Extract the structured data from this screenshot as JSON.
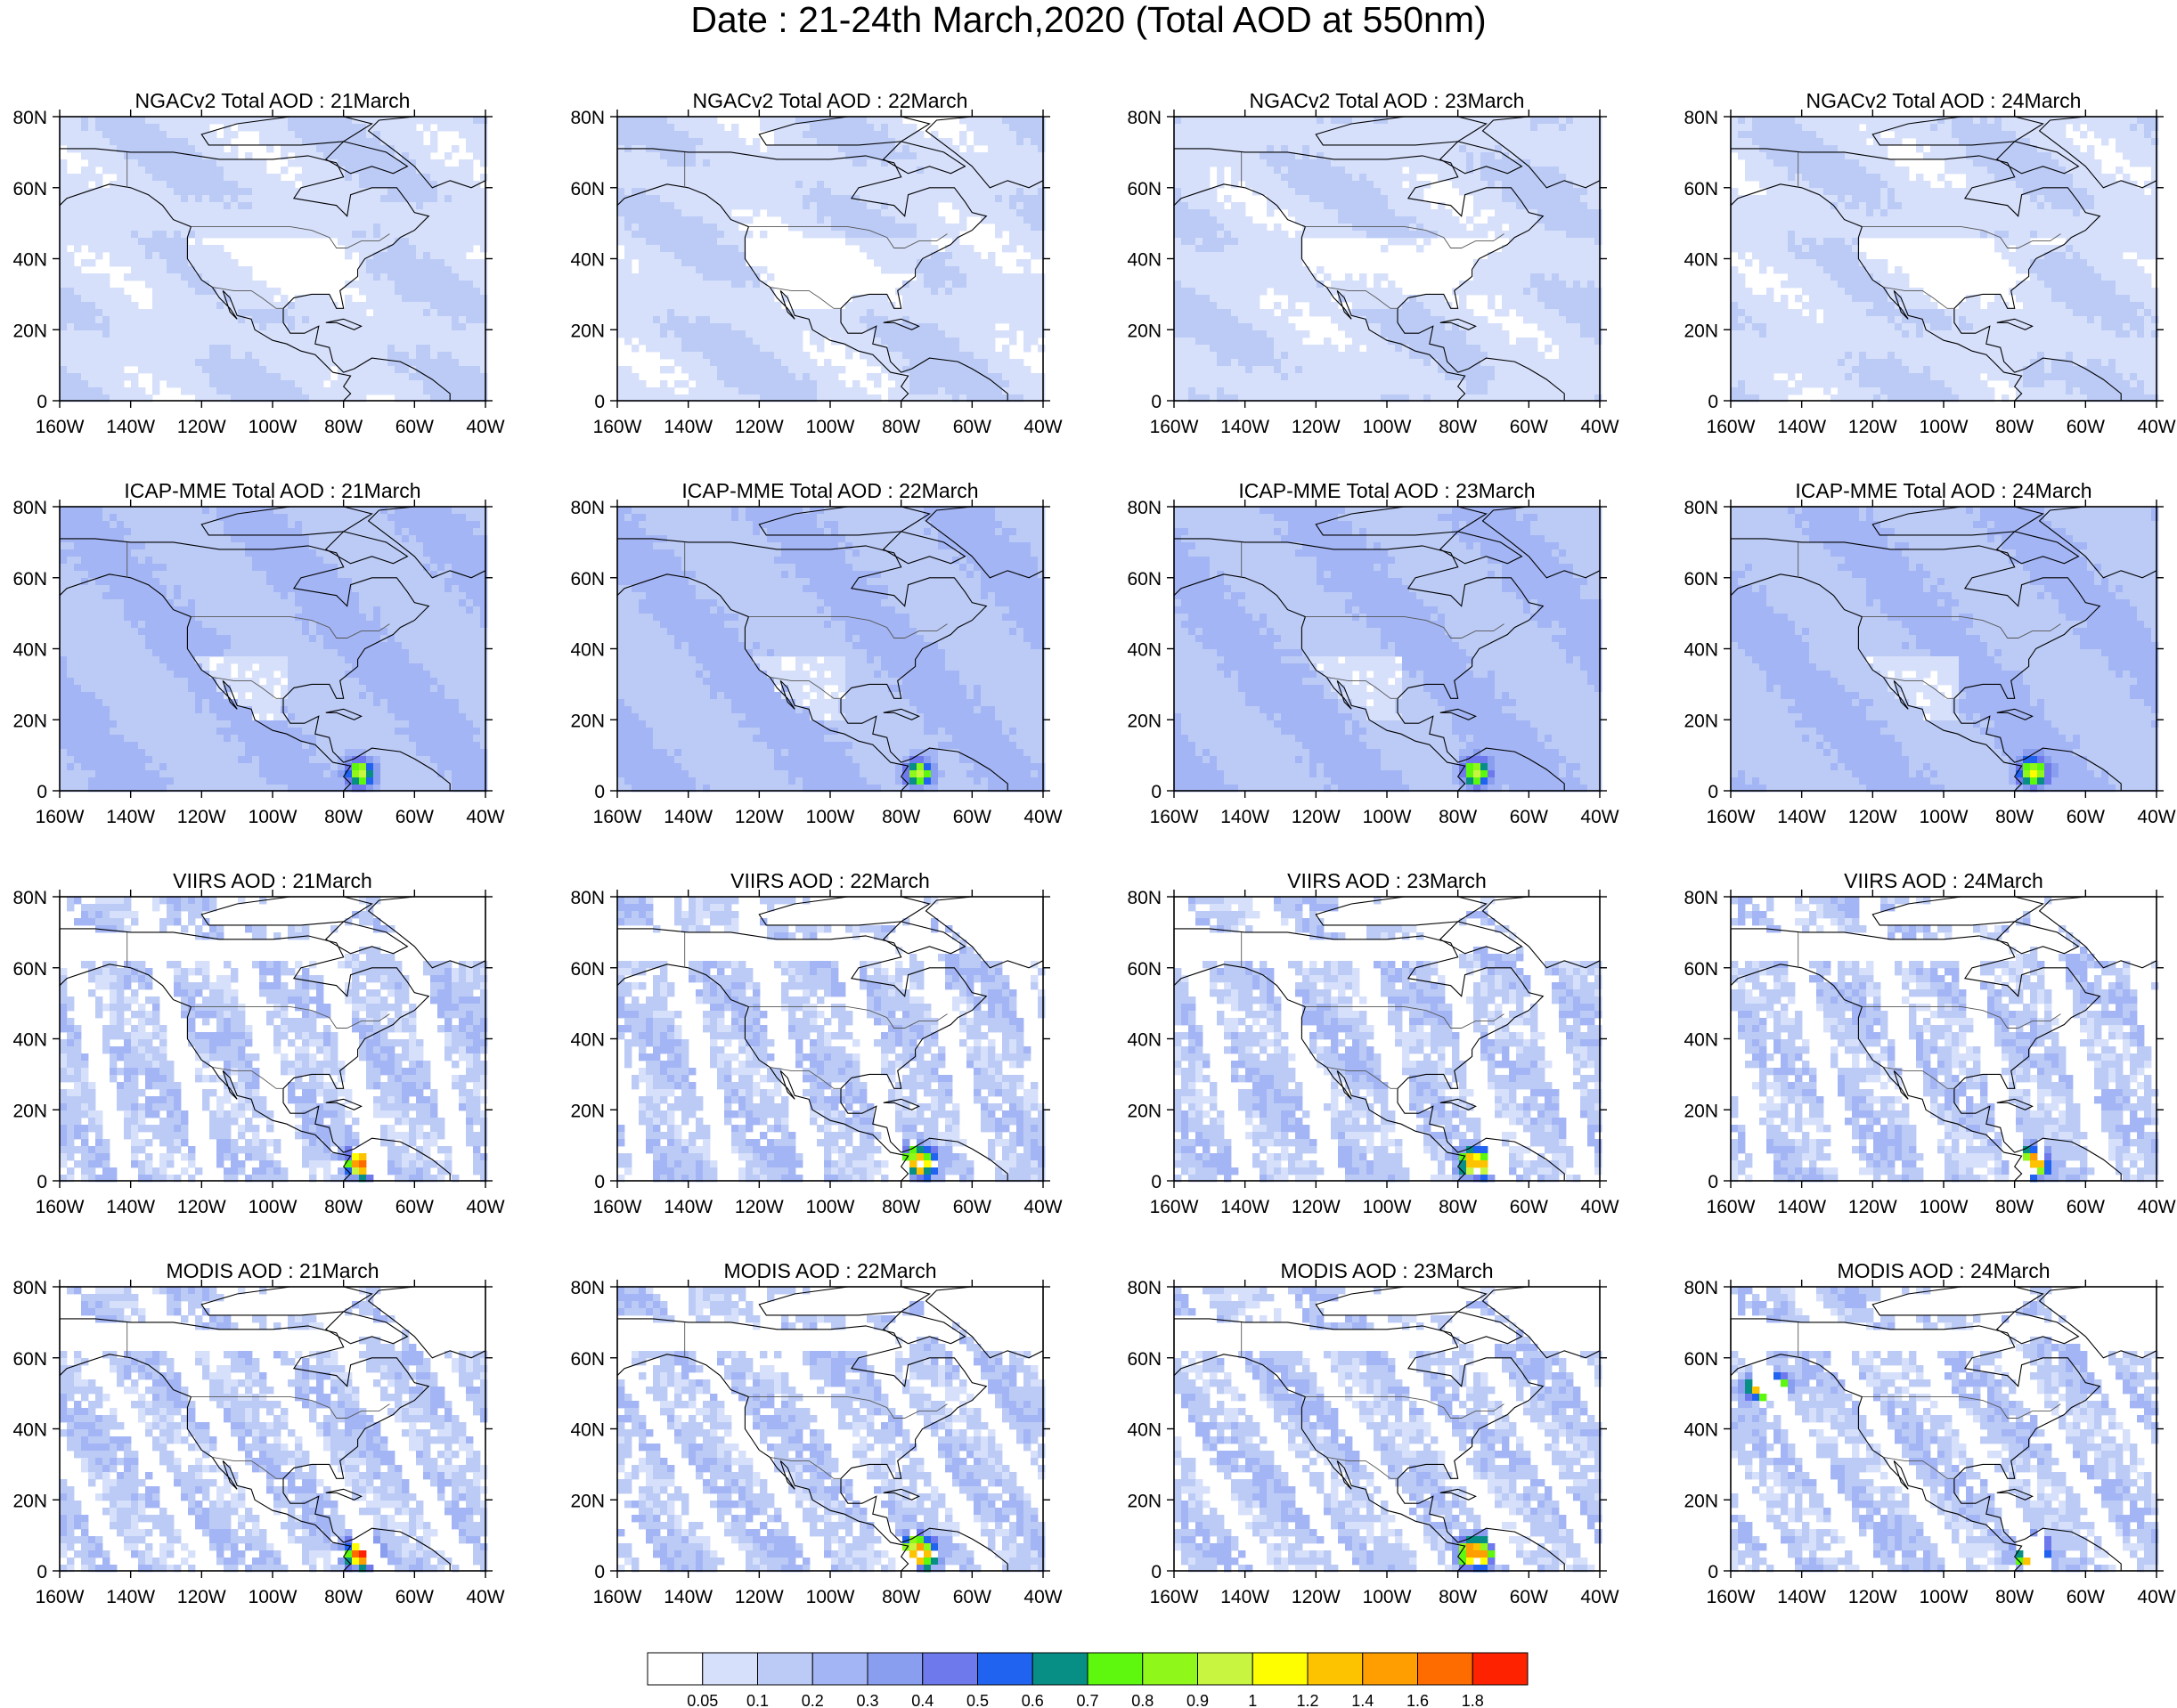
{
  "title": "Date : 21-24th March,2020 (Total AOD at 550nm)",
  "chart_data": {
    "type": "heatmap",
    "layout": "4 rows x 4 columns of map panels",
    "map_extent": {
      "lon": [
        -160,
        -40
      ],
      "lat": [
        0,
        80
      ]
    },
    "x_ticks": [
      "160W",
      "140W",
      "120W",
      "100W",
      "80W",
      "60W",
      "40W"
    ],
    "y_ticks": [
      "0",
      "20N",
      "40N",
      "60N",
      "80N"
    ],
    "products": [
      {
        "key": "ngac",
        "name": "NGACv2 Total AOD",
        "description": "smooth model field, mostly 0.05-0.2",
        "dust_peak": 0.1
      },
      {
        "key": "icap",
        "name": "ICAP-MME Total AOD",
        "description": "smooth model field, 0.1-0.3, hotspot in northern South America",
        "dust_peak": 0.8
      },
      {
        "key": "viirs",
        "name": "VIIRS AOD",
        "description": "satellite retrieval with orbit swath gaps, hotspot near 75W 5N",
        "dust_peak": 1.2
      },
      {
        "key": "modis",
        "name": "MODIS AOD",
        "description": "satellite retrieval with diagonal swath gaps, hotspot near 75W 5N",
        "dust_peak": 1.4
      }
    ],
    "panels": [
      {
        "product": "ngac",
        "title": "NGACv2 Total AOD : 21March"
      },
      {
        "product": "ngac",
        "title": "NGACv2 Total AOD : 22March"
      },
      {
        "product": "ngac",
        "title": "NGACv2 Total AOD : 23March"
      },
      {
        "product": "ngac",
        "title": "NGACv2 Total AOD : 24March"
      },
      {
        "product": "icap",
        "title": "ICAP-MME Total AOD : 21March"
      },
      {
        "product": "icap",
        "title": "ICAP-MME Total AOD : 22March"
      },
      {
        "product": "icap",
        "title": "ICAP-MME Total AOD : 23March"
      },
      {
        "product": "icap",
        "title": "ICAP-MME Total AOD : 24March"
      },
      {
        "product": "viirs",
        "title": "VIIRS AOD : 21March"
      },
      {
        "product": "viirs",
        "title": "VIIRS AOD : 22March"
      },
      {
        "product": "viirs",
        "title": "VIIRS AOD : 23March"
      },
      {
        "product": "viirs",
        "title": "VIIRS AOD : 24March"
      },
      {
        "product": "modis",
        "title": "MODIS AOD : 21March"
      },
      {
        "product": "modis",
        "title": "MODIS AOD : 22March"
      },
      {
        "product": "modis",
        "title": "MODIS AOD : 23March"
      },
      {
        "product": "modis",
        "title": "MODIS AOD : 24March"
      }
    ],
    "colorbar": {
      "levels": [
        "0.05",
        "0.1",
        "0.2",
        "0.3",
        "0.4",
        "0.5",
        "0.6",
        "0.7",
        "0.8",
        "0.9",
        "1",
        "1.2",
        "1.4",
        "1.6",
        "1.8"
      ],
      "bounds": [
        0.05,
        0.1,
        0.2,
        0.3,
        0.4,
        0.5,
        0.6,
        0.7,
        0.8,
        0.9,
        1,
        1.2,
        1.4,
        1.6,
        1.8
      ],
      "colors": [
        "#ffffff",
        "#d6e0fb",
        "#bccbf6",
        "#a3b5f4",
        "#8a9ef0",
        "#6e79ec",
        "#1f63f0",
        "#078f86",
        "#5ef80f",
        "#8ff81a",
        "#c8f540",
        "#fefe00",
        "#fec300",
        "#fe9e00",
        "#fe6c00",
        "#fe2200"
      ]
    }
  }
}
